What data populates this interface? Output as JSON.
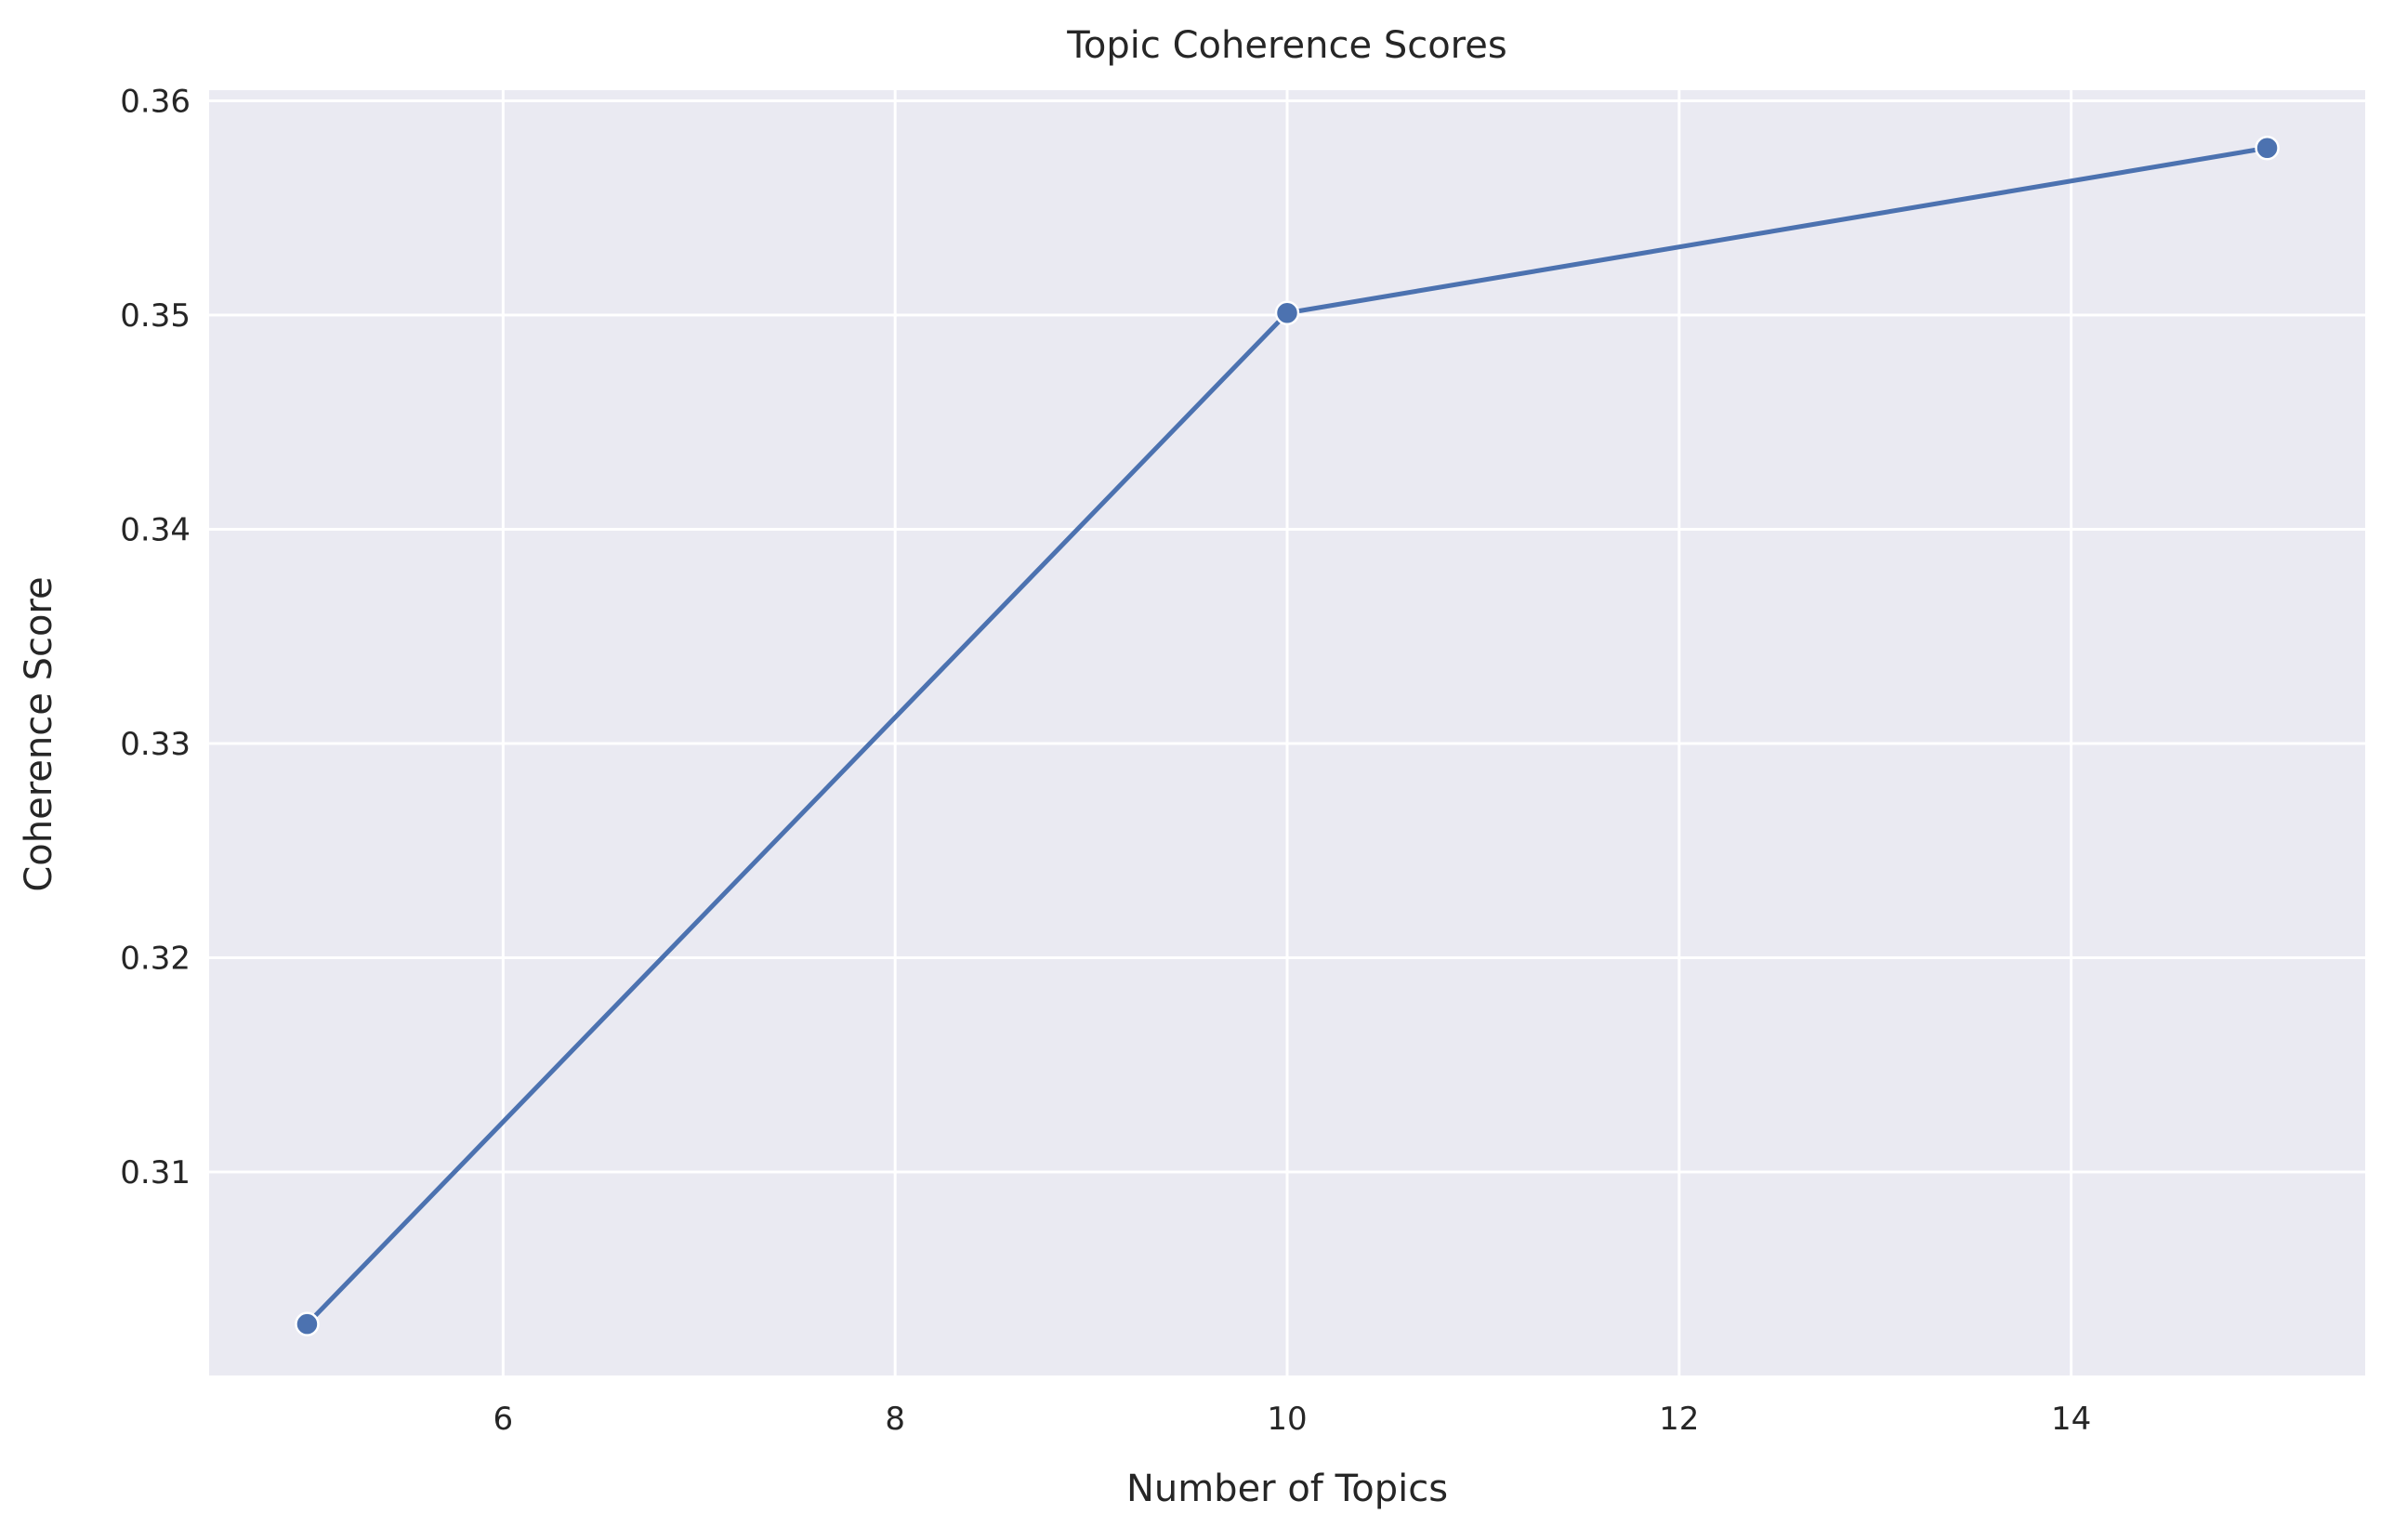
{
  "chart_data": {
    "type": "line",
    "title": "Topic Coherence Scores",
    "xlabel": "Number of Topics",
    "ylabel": "Coherence Score",
    "xlim": [
      4.5,
      15.5
    ],
    "ylim": [
      0.3005,
      0.3605
    ],
    "xticks": [
      6,
      8,
      10,
      12,
      14
    ],
    "xtick_labels": [
      "6",
      "8",
      "10",
      "12",
      "14"
    ],
    "yticks": [
      0.31,
      0.32,
      0.33,
      0.34,
      0.35,
      0.36
    ],
    "ytick_labels": [
      "0.31",
      "0.32",
      "0.33",
      "0.34",
      "0.35",
      "0.36"
    ],
    "grid": true,
    "x": [
      5,
      10,
      15
    ],
    "series": [
      {
        "values": [
          0.3029,
          0.3501,
          0.3578
        ]
      }
    ],
    "colors": {
      "line": "#4c72b0",
      "plot_bg": "#eaeaf2",
      "grid": "#ffffff"
    }
  }
}
